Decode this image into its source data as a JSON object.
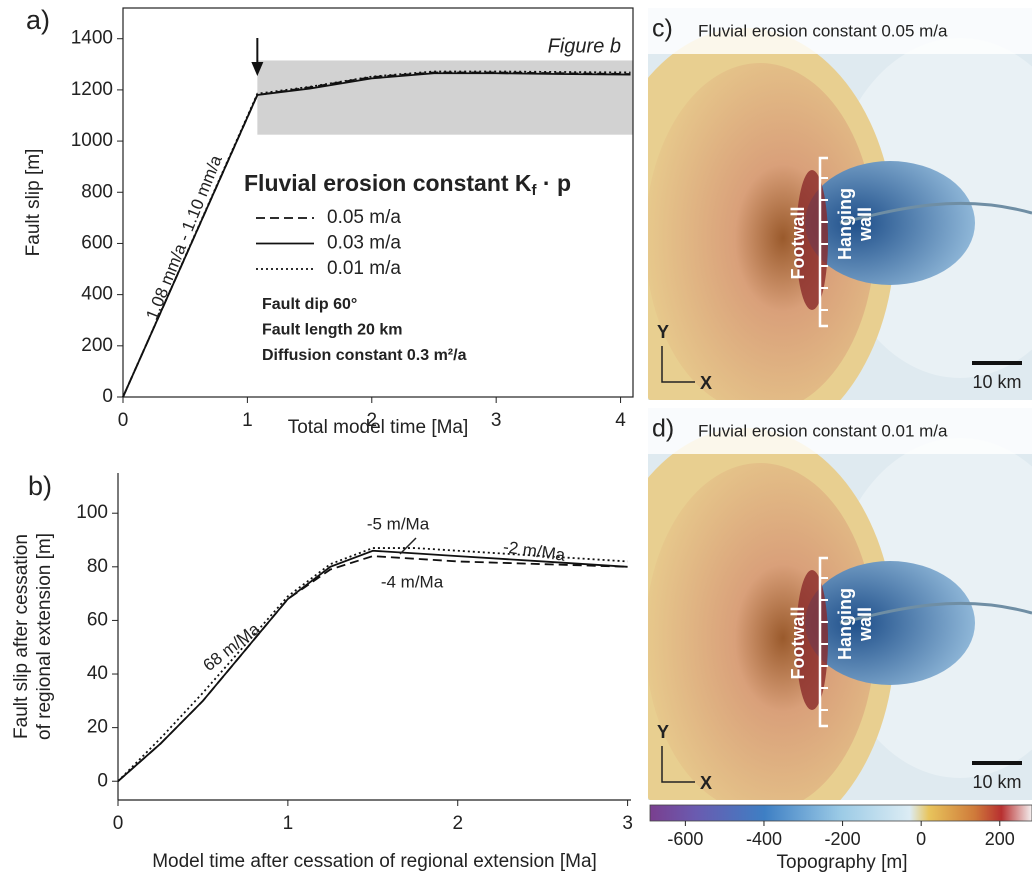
{
  "chart_data": [
    {
      "type": "line",
      "panel": "a)",
      "xlabel": "Total model time [Ma]",
      "ylabel": "Fault slip [m]",
      "x": [
        0,
        1.08,
        1.5,
        2,
        2.5,
        3,
        3.5,
        4.08
      ],
      "series": [
        {
          "name": "0.05 m/a",
          "dash": "dashed",
          "color": "#111111",
          "values": [
            0,
            1180,
            1210,
            1250,
            1268,
            1268,
            1265,
            1262
          ]
        },
        {
          "name": "0.03 m/a",
          "dash": "solid",
          "color": "#111111",
          "values": [
            0,
            1180,
            1205,
            1245,
            1265,
            1265,
            1262,
            1260
          ]
        },
        {
          "name": "0.01 m/a",
          "dash": "dotted",
          "color": "#111111",
          "values": [
            0,
            1185,
            1212,
            1252,
            1272,
            1272,
            1270,
            1268
          ]
        }
      ],
      "xlim": [
        0,
        4.1
      ],
      "ylim": [
        0,
        1520
      ],
      "xticks": [
        0,
        1,
        2,
        3,
        4
      ],
      "yticks": [
        0,
        200,
        400,
        600,
        800,
        1000,
        1200,
        1400
      ],
      "legend_title": [
        "Fluvial erosion constant K",
        "f",
        " · p"
      ],
      "highlight": {
        "label": "Figure b",
        "xlim": [
          1.08,
          4.1
        ],
        "ylim": [
          1025,
          1315
        ]
      },
      "annotations": [
        "1.08 mm/a - 1.10 mm/a"
      ],
      "notes": [
        "Fault dip 60°",
        "Fault length 20 km",
        "Diffusion constant 0.3 m²/a"
      ]
    },
    {
      "type": "line",
      "panel": "b)",
      "xlabel": "Model time after cessation of regional extension [Ma]",
      "ylabel": [
        "Fault slip after cessation",
        "of regional extension [m]"
      ],
      "x": [
        0,
        0.25,
        0.5,
        0.75,
        1,
        1.25,
        1.5,
        1.75,
        2,
        2.5,
        3
      ],
      "series": [
        {
          "dash": "dashed",
          "color": "#111111",
          "values": [
            0,
            14,
            30,
            49,
            68,
            79,
            84,
            83,
            82,
            81,
            80
          ]
        },
        {
          "dash": "solid",
          "color": "#111111",
          "values": [
            0,
            14,
            30,
            49,
            68,
            80,
            86,
            85,
            84,
            82,
            80
          ]
        },
        {
          "dash": "dotted",
          "color": "#111111",
          "values": [
            0,
            16,
            33,
            51,
            69,
            81,
            87,
            87,
            86,
            84,
            82
          ]
        }
      ],
      "xlim": [
        0,
        3.02
      ],
      "ylim": [
        -7,
        115
      ],
      "xticks": [
        0,
        1,
        2,
        3
      ],
      "yticks": [
        0,
        20,
        40,
        60,
        80,
        100
      ],
      "annotations": [
        "68 m/Ma",
        "-5 m/Ma",
        "-4 m/Ma",
        "-2 m/Ma"
      ]
    },
    {
      "type": "colorbar",
      "xlabel": "Topography [m]",
      "xlim": [
        -690,
        282
      ],
      "xticks": [
        -600,
        -400,
        -200,
        0,
        200
      ]
    }
  ],
  "maps": [
    {
      "label": "c)",
      "title": "Fluvial erosion constant 0.05 m/a",
      "footwall": "Footwall",
      "hanging": [
        "Hanging",
        "wall"
      ],
      "y": "Y",
      "x": "X",
      "scale": "10 km"
    },
    {
      "label": "d)",
      "title": "Fluvial erosion constant 0.01 m/a",
      "footwall": "Footwall",
      "hanging": [
        "Hanging",
        "wall"
      ],
      "y": "Y",
      "x": "X",
      "scale": "10 km"
    }
  ]
}
